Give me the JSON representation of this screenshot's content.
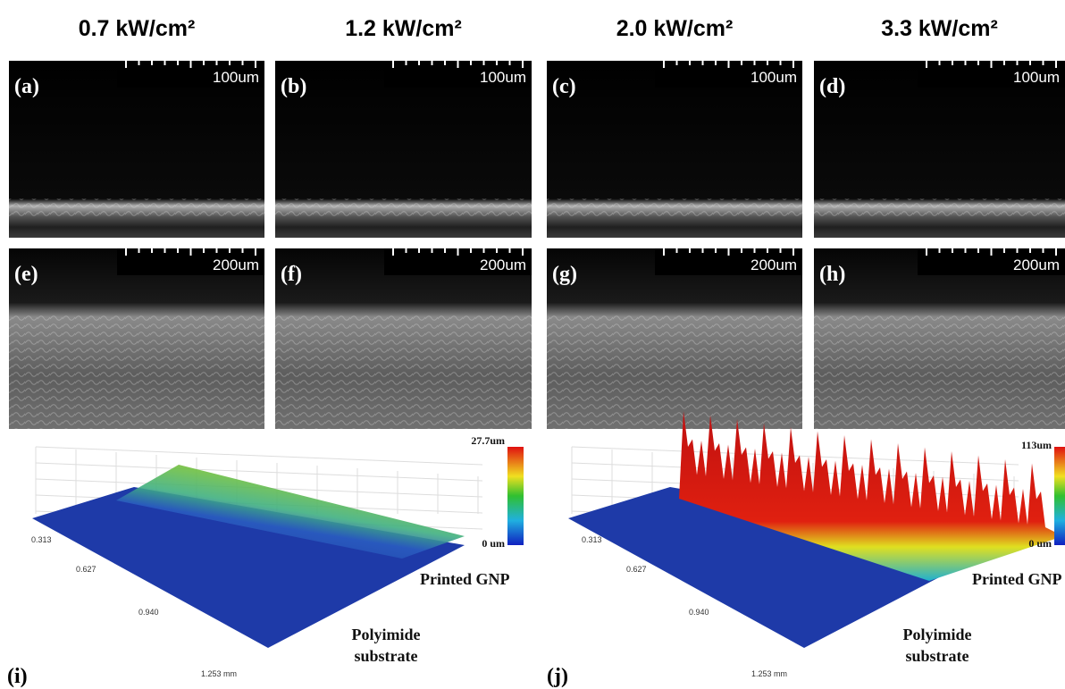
{
  "header": {
    "columns": [
      "0.7 kW/cm²",
      "1.2 kW/cm²",
      "2.0 kW/cm²",
      "3.3 kW/cm²"
    ]
  },
  "sem_panels": [
    {
      "label": "(a)",
      "scale": "100um"
    },
    {
      "label": "(b)",
      "scale": "100um"
    },
    {
      "label": "(c)",
      "scale": "100um"
    },
    {
      "label": "(d)",
      "scale": "100um"
    },
    {
      "label": "(e)",
      "scale": "200um"
    },
    {
      "label": "(f)",
      "scale": "200um"
    },
    {
      "label": "(g)",
      "scale": "200um"
    },
    {
      "label": "(h)",
      "scale": "200um"
    }
  ],
  "profile_panels": [
    {
      "label": "(i)",
      "colorbar_max": "27.7um",
      "colorbar_min": "0 um",
      "ticks": [
        "0.313",
        "0.627",
        "0.940",
        "1.253 mm"
      ],
      "top_label": "Printed GNP",
      "bottom_label": [
        "Polyimide",
        "substrate"
      ]
    },
    {
      "label": "(j)",
      "colorbar_max": "113um",
      "colorbar_min": "0 um",
      "ticks": [
        "0.313",
        "0.627",
        "0.940",
        "1.253 mm"
      ],
      "top_label": "Printed GNP",
      "bottom_label": [
        "Polyimide",
        "substrate"
      ]
    }
  ]
}
